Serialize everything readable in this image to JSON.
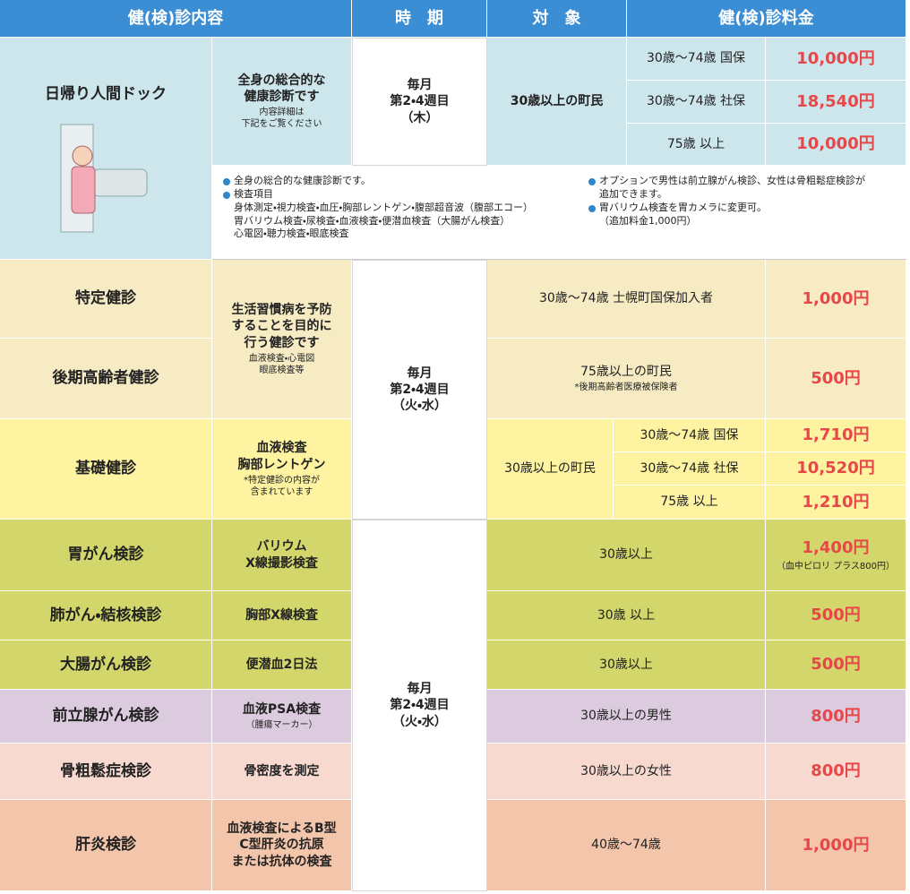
{
  "header": {
    "content": "健(検)診内容",
    "timing": "時　期",
    "target": "対　象",
    "fee": "健(検)診料金"
  },
  "dock": {
    "name": "日帰り人間ドック",
    "description": "全身の総合的な\n健康診断です",
    "note": "内容詳細は\n下記をご覧ください",
    "timing": "毎月\n第2・4週目\n（木）",
    "target": "30歳以上の町民",
    "tiers": [
      {
        "age": "30歳～74歳 国保",
        "fee": "10,000円"
      },
      {
        "age": "30歳～74歳 社保",
        "fee": "18,540円"
      },
      {
        "age": "75歳 以上",
        "fee": "10,000円"
      }
    ],
    "details_left": [
      "全身の総合的な健康診断です。",
      "検査項目"
    ],
    "details_items": "身体測定・視力検査・血圧・胸部レントゲン・腹部超音波（腹部エコー）\n胃バリウム検査・尿検査・血液検査・便潜血検査（大腸がん検査）\n心電図・聴力検査・眼底検査",
    "details_right": [
      "オプションで男性は前立腺がん検診、女性は骨粗鬆症検診が\n追加できます。",
      "胃バリウム検査を胃カメラに変更可。\n（追加料金1,000円）"
    ]
  },
  "health_checkups": {
    "timing": "毎月\n第2・4週目\n（火・水）",
    "description": "生活習慣病を予防\nすることを目的に\n行う健診です",
    "note": "血液検査・心電図\n眼底検査等",
    "specific": {
      "name": "特定健診",
      "target": "30歳～74歳 士幌町国保加入者",
      "fee": "1,000円"
    },
    "elderly": {
      "name": "後期高齢者健診",
      "target": "75歳以上の町民",
      "target_note": "*後期高齢者医療被保険者",
      "fee": "500円"
    },
    "basic": {
      "name": "基礎健診",
      "description": "血液検査\n胸部レントゲン",
      "note": "*特定健診の内容が\n含まれています",
      "target": "30歳以上の町民",
      "tiers": [
        {
          "age": "30歳～74歳 国保",
          "fee": "1,710円"
        },
        {
          "age": "30歳～74歳 社保",
          "fee": "10,520円"
        },
        {
          "age": "75歳 以上",
          "fee": "1,210円"
        }
      ]
    }
  },
  "cancer_screenings": {
    "timing": "毎月\n第2・4週目\n（火・水）",
    "rows": [
      {
        "name": "胃がん検診",
        "description": "バリウム\nX線撮影検査",
        "target": "30歳以上",
        "fee": "1,400円",
        "fee_note": "（血中ピロリ プラス800円）"
      },
      {
        "name": "肺がん・結核検診",
        "description": "胸部X線検査",
        "target": "30歳 以上",
        "fee": "500円"
      },
      {
        "name": "大腸がん検診",
        "description": "便潜血2日法",
        "target": "30歳以上",
        "fee": "500円"
      },
      {
        "name": "前立腺がん検診",
        "description": "血液PSA検査",
        "note": "（腫瘍マーカー）",
        "target": "30歳以上の男性",
        "fee": "800円"
      },
      {
        "name": "骨粗鬆症検診",
        "description": "骨密度を測定",
        "target": "30歳以上の女性",
        "fee": "800円"
      },
      {
        "name": "肝炎検診",
        "description": "血液検査によるB型\nC型肝炎の抗原\nまたは抗体の検査",
        "target": "40歳～74歳",
        "fee": "1,000円"
      }
    ]
  }
}
